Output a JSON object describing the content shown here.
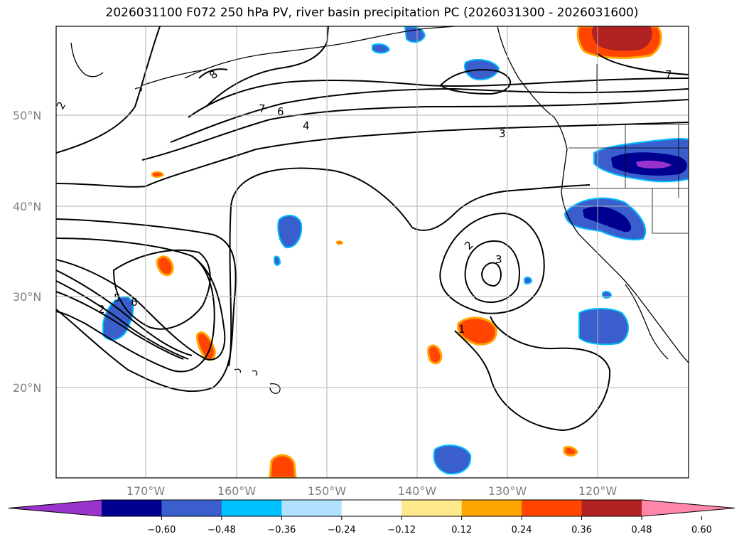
{
  "title": "2026031100 F072 250 hPa PV, river basin precipitation PC (2026031300 - 2026031600)",
  "map": {
    "lat_labels": [
      "50°N",
      "40°N",
      "30°N",
      "20°N"
    ],
    "lon_labels": [
      "170°W",
      "160°W",
      "150°W",
      "140°W",
      "130°W",
      "120°W"
    ],
    "contour_labels": [
      "2",
      "8",
      "7",
      "6",
      "4",
      "3",
      "2",
      "3",
      "2",
      "1",
      "5",
      "6",
      "7"
    ],
    "land_color": "#ffffff",
    "grid_color": "#b0b0b0"
  },
  "colorbar": {
    "ticks": [
      "−0.60",
      "−0.48",
      "−0.36",
      "−0.24",
      "−0.12",
      "0.12",
      "0.24",
      "0.36",
      "0.48",
      "0.60"
    ],
    "colors": [
      "#9933cc",
      "#000090",
      "#3a5fcd",
      "#00bfff",
      "#b0e2ff",
      "#ffffff",
      "#ffe98c",
      "#ffa500",
      "#ff4500",
      "#b22222",
      "#ff88aa"
    ]
  }
}
